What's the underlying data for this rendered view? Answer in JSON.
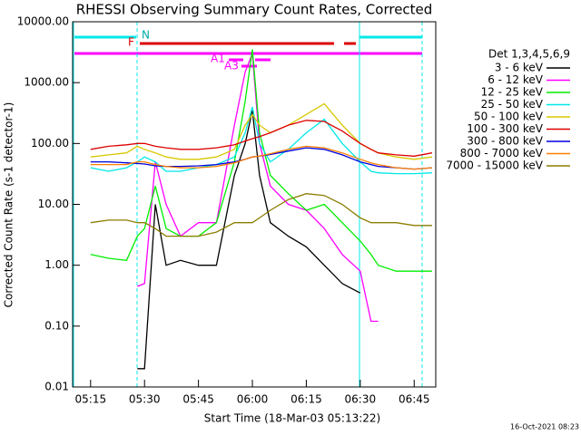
{
  "chart_data": {
    "type": "line",
    "title": "RHESSI Observing Summary Count Rates, Corrected",
    "x_label": "Start Time (18-Mar-03 05:13:22)",
    "y_label": "Corrected Count Rate (s-1 detector-1)",
    "legend_title": "Det 1,3,4,5,6,9",
    "footer": "16-Oct-2021 08:23",
    "flags": [
      "N",
      "F",
      "A1",
      "A3"
    ],
    "log_y": true,
    "xlim": [
      "05:10",
      "06:51"
    ],
    "xticks": [
      "05:15",
      "05:30",
      "05:45",
      "06:00",
      "06:15",
      "06:30",
      "06:45"
    ],
    "ylim": [
      0.01,
      10000
    ],
    "yticks": [
      {
        "value": 10000,
        "label": "10000.00"
      },
      {
        "value": 1000,
        "label": "1000.00"
      },
      {
        "value": 100,
        "label": "100.00"
      },
      {
        "value": 10,
        "label": "10.00"
      },
      {
        "value": 1,
        "label": "1.00"
      },
      {
        "value": 0.1,
        "label": "0.10"
      },
      {
        "value": 0.01,
        "label": "0.01"
      }
    ],
    "x": [
      "05:15",
      "05:20",
      "05:25",
      "05:28",
      "05:30",
      "05:33",
      "05:36",
      "05:40",
      "05:45",
      "05:50",
      "05:55",
      "05:58",
      "06:00",
      "06:02",
      "06:05",
      "06:10",
      "06:15",
      "06:20",
      "06:25",
      "06:30",
      "06:33",
      "06:35",
      "06:40",
      "06:45",
      "06:50"
    ],
    "series": [
      {
        "name": "3 - 6 keV",
        "color": "#000000",
        "values": [
          null,
          null,
          null,
          0.02,
          0.02,
          10,
          1,
          1.2,
          1,
          1,
          30,
          100,
          350,
          30,
          5,
          3,
          2,
          1,
          0.5,
          0.35,
          null,
          null,
          null,
          null,
          null
        ]
      },
      {
        "name": "6 - 12 keV",
        "color": "#ff00ff",
        "values": [
          null,
          null,
          null,
          0.45,
          0.5,
          50,
          10,
          3,
          5,
          5,
          200,
          1500,
          3000,
          100,
          20,
          10,
          8,
          4,
          1.5,
          0.8,
          0.12,
          0.12,
          null,
          null,
          null
        ]
      },
      {
        "name": "12 - 25 keV",
        "color": "#00ee00",
        "values": [
          1.5,
          1.3,
          1.2,
          3,
          4,
          20,
          4,
          3,
          3,
          5,
          50,
          500,
          3500,
          150,
          30,
          15,
          8,
          10,
          5,
          2.5,
          1.5,
          1,
          0.8,
          0.8,
          0.8
        ]
      },
      {
        "name": "25 - 50 keV",
        "color": "#00e8e8",
        "values": [
          40,
          35,
          40,
          50,
          60,
          50,
          35,
          35,
          40,
          45,
          60,
          150,
          400,
          100,
          50,
          80,
          150,
          250,
          100,
          50,
          35,
          33,
          32,
          32,
          33
        ]
      },
      {
        "name": "50 - 100 keV",
        "color": "#d8c800",
        "values": [
          60,
          65,
          70,
          90,
          80,
          70,
          60,
          55,
          55,
          60,
          80,
          200,
          300,
          200,
          150,
          200,
          300,
          450,
          200,
          100,
          80,
          70,
          60,
          55,
          60
        ]
      },
      {
        "name": "100 - 300 keV",
        "color": "#dd0000",
        "values": [
          80,
          90,
          95,
          100,
          100,
          90,
          85,
          80,
          80,
          85,
          95,
          110,
          120,
          130,
          150,
          200,
          240,
          230,
          160,
          100,
          80,
          70,
          65,
          62,
          70
        ]
      },
      {
        "name": "300 - 800 keV",
        "color": "#0000dd",
        "values": [
          50,
          50,
          48,
          47,
          46,
          43,
          42,
          42,
          43,
          45,
          50,
          55,
          60,
          62,
          66,
          75,
          85,
          80,
          65,
          50,
          45,
          42,
          40,
          38,
          40
        ]
      },
      {
        "name": "800 - 7000 keV",
        "color": "#ff8000",
        "values": [
          45,
          45,
          45,
          50,
          50,
          45,
          42,
          40,
          40,
          42,
          48,
          55,
          60,
          62,
          68,
          80,
          90,
          85,
          70,
          55,
          48,
          45,
          40,
          38,
          40
        ]
      },
      {
        "name": "7000 - 15000 keV",
        "color": "#8b7d00",
        "values": [
          5,
          5.5,
          5.5,
          5,
          5,
          4,
          3,
          3,
          3,
          3.5,
          5,
          5,
          5,
          6,
          8,
          12,
          15,
          14,
          10,
          6,
          5,
          5,
          5,
          4.5,
          4.5
        ]
      }
    ]
  }
}
